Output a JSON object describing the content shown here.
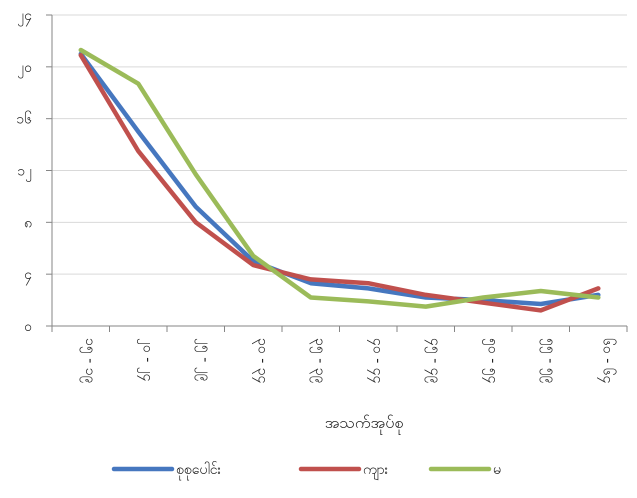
{
  "chart_data": {
    "type": "line",
    "title": "",
    "xlabel": "အသက်အုပ်စု",
    "ylabel": "",
    "categories": [
      "၁၅ - ၁၉",
      "၂၀ - ၂၄",
      "၂၅ - ၂၉",
      "၃၀ - ၃၄",
      "၃၅ - ၃၉",
      "၄၀ - ၄၄",
      "၄၅ - ၄၉",
      "၅၀ - ၅၄",
      "၅၅ - ၅၉",
      "၆၀ - ၆၄"
    ],
    "yticks": [
      {
        "value": 0,
        "label": "၀"
      },
      {
        "value": 4,
        "label": "၄"
      },
      {
        "value": 8,
        "label": "၈"
      },
      {
        "value": 12,
        "label": "၁၂"
      },
      {
        "value": 16,
        "label": "၁၆"
      },
      {
        "value": 20,
        "label": "၂၀"
      },
      {
        "value": 24,
        "label": "၂၄"
      }
    ],
    "ylim": [
      0,
      24
    ],
    "grid": true,
    "legend_position": "bottom",
    "series": [
      {
        "name": "စုစုပေါင်း",
        "color": "#4677bf",
        "values": [
          21.0,
          15.0,
          9.2,
          5.0,
          3.3,
          2.9,
          2.2,
          2.0,
          1.7,
          2.4
        ]
      },
      {
        "name": "ကျား",
        "color": "#c0504d",
        "values": [
          20.9,
          13.5,
          8.0,
          4.7,
          3.6,
          3.3,
          2.4,
          1.8,
          1.2,
          2.9
        ]
      },
      {
        "name": "မ",
        "color": "#9bbb59",
        "values": [
          21.3,
          18.7,
          11.7,
          5.4,
          2.2,
          1.9,
          1.5,
          2.2,
          2.7,
          2.2
        ]
      }
    ]
  }
}
